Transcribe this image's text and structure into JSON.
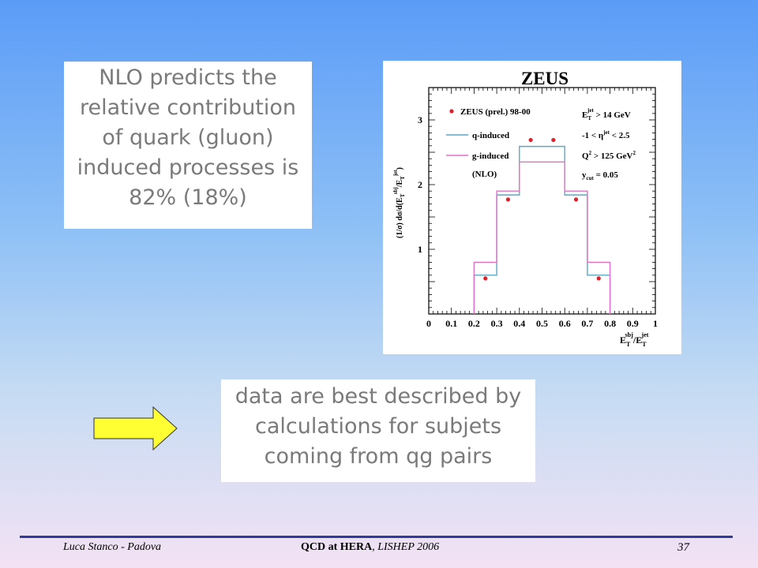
{
  "note_box": {
    "lines": [
      "NLO predicts the",
      "relative contribution",
      "of quark (gluon)",
      "induced processes is",
      "82% (18%)"
    ]
  },
  "conclusion_box": {
    "lines": [
      "data are best described by",
      "calculations for subjets",
      "coming from qg pairs"
    ]
  },
  "footer": {
    "author": "Luca Stanco - Padova",
    "title_bold": "QCD at HERA",
    "title_rest": ", LISHEP 2006",
    "page": "37"
  },
  "colors": {
    "arrow_fill": "#ffff33",
    "q_induced": "#5ba7c8",
    "g_induced": "#e070c8",
    "data_points": "#e0202a",
    "footer_rule": "#2f3c9e"
  },
  "chart_data": {
    "type": "step-histogram",
    "title": "ZEUS",
    "ylabel": "(1/σ) dσ/d(E_T^sbj/E_T^jet)",
    "xlabel": "E_T^sbj/E_T^jet",
    "xlim": [
      0,
      1
    ],
    "ylim": [
      0,
      3.5
    ],
    "x_ticks": [
      "0",
      "0.1",
      "0.2",
      "0.3",
      "0.4",
      "0.5",
      "0.6",
      "0.7",
      "0.8",
      "0.9",
      "1"
    ],
    "y_ticks": [
      "1",
      "2",
      "3"
    ],
    "bin_edges": [
      0.2,
      0.3,
      0.4,
      0.6,
      0.7,
      0.8
    ],
    "series": [
      {
        "name": "ZEUS (prel.) 98-00",
        "kind": "points",
        "x": [
          0.25,
          0.35,
          0.45,
          0.55,
          0.65,
          0.75
        ],
        "y": [
          0.55,
          1.77,
          2.69,
          2.69,
          1.77,
          0.55
        ]
      },
      {
        "name": "q-induced",
        "kind": "step",
        "values": [
          0.6,
          1.84,
          2.59,
          1.84,
          0.6
        ]
      },
      {
        "name": "g-induced",
        "kind": "step",
        "values": [
          0.8,
          1.9,
          2.35,
          1.9,
          0.8
        ]
      }
    ],
    "legend_extra": "(NLO)",
    "cuts": {
      "et_cut": "E_T^jet > 14 GeV",
      "eta_cut": "-1 < η^jet < 2.5",
      "q2_cut": "Q^2 > 125 GeV^2",
      "ycut": "y_cut = 0.05"
    }
  }
}
